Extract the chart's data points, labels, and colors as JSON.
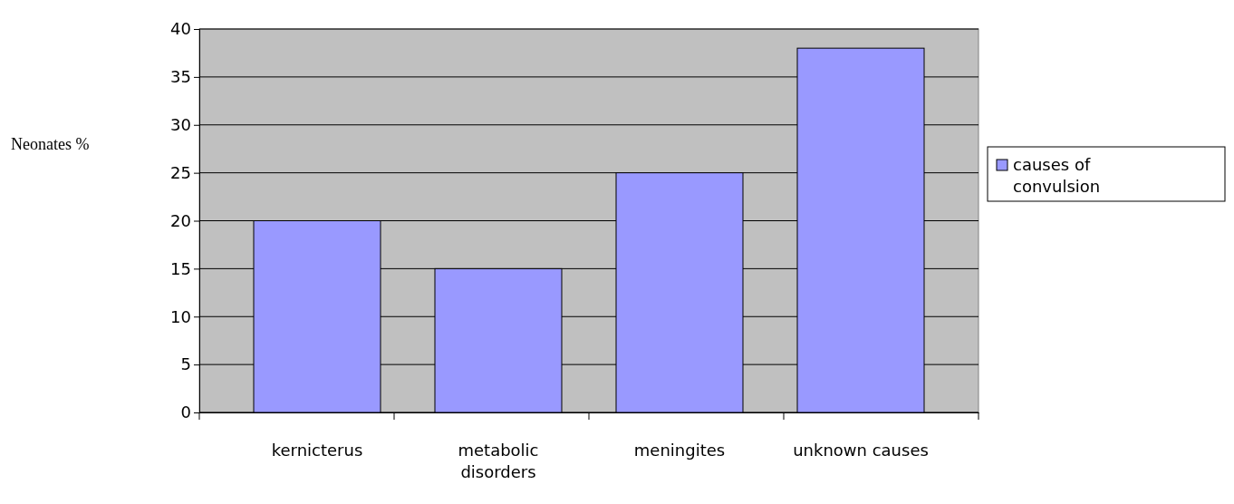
{
  "chart_data": {
    "type": "bar",
    "ylabel": "Neonates %",
    "categories": [
      "kernicterus",
      "metabolic disorders",
      "meningites",
      "unknown causes"
    ],
    "series": [
      {
        "name": "causes of convulsion",
        "color": "#9999ff",
        "values": [
          20,
          15,
          25,
          38
        ]
      }
    ],
    "ylim": [
      0,
      40
    ],
    "yticks": [
      0,
      5,
      10,
      15,
      20,
      25,
      30,
      35,
      40
    ],
    "grid": "y",
    "legend": "right"
  }
}
